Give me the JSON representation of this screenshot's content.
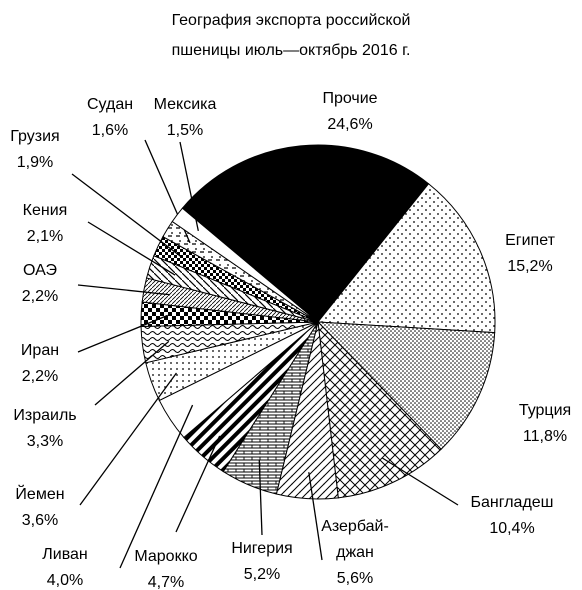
{
  "chart_data": {
    "type": "pie",
    "title": "География экспорта российской\nпшеницы июль—октябрь 2016 г.",
    "categories": [
      "Прочие",
      "Египет",
      "Турция",
      "Бангладеш",
      "Азербай-\nджан",
      "Нигерия",
      "Марокко",
      "Ливан",
      "Йемен",
      "Израиль",
      "Иран",
      "ОАЭ",
      "Кения",
      "Грузия",
      "Судан",
      "Мексика"
    ],
    "values": [
      24.6,
      15.2,
      11.8,
      10.4,
      5.6,
      5.2,
      4.7,
      4.0,
      3.6,
      3.3,
      2.2,
      2.2,
      2.1,
      1.9,
      1.6,
      1.5
    ],
    "value_labels": [
      "24,6%",
      "15,2%",
      "11,8%",
      "10,4%",
      "5,6%",
      "5,2%",
      "4,7%",
      "4,0%",
      "3,6%",
      "3,3%",
      "2,2%",
      "2,2%",
      "2,1%",
      "1,9%",
      "1,6%",
      "1,5%"
    ]
  }
}
